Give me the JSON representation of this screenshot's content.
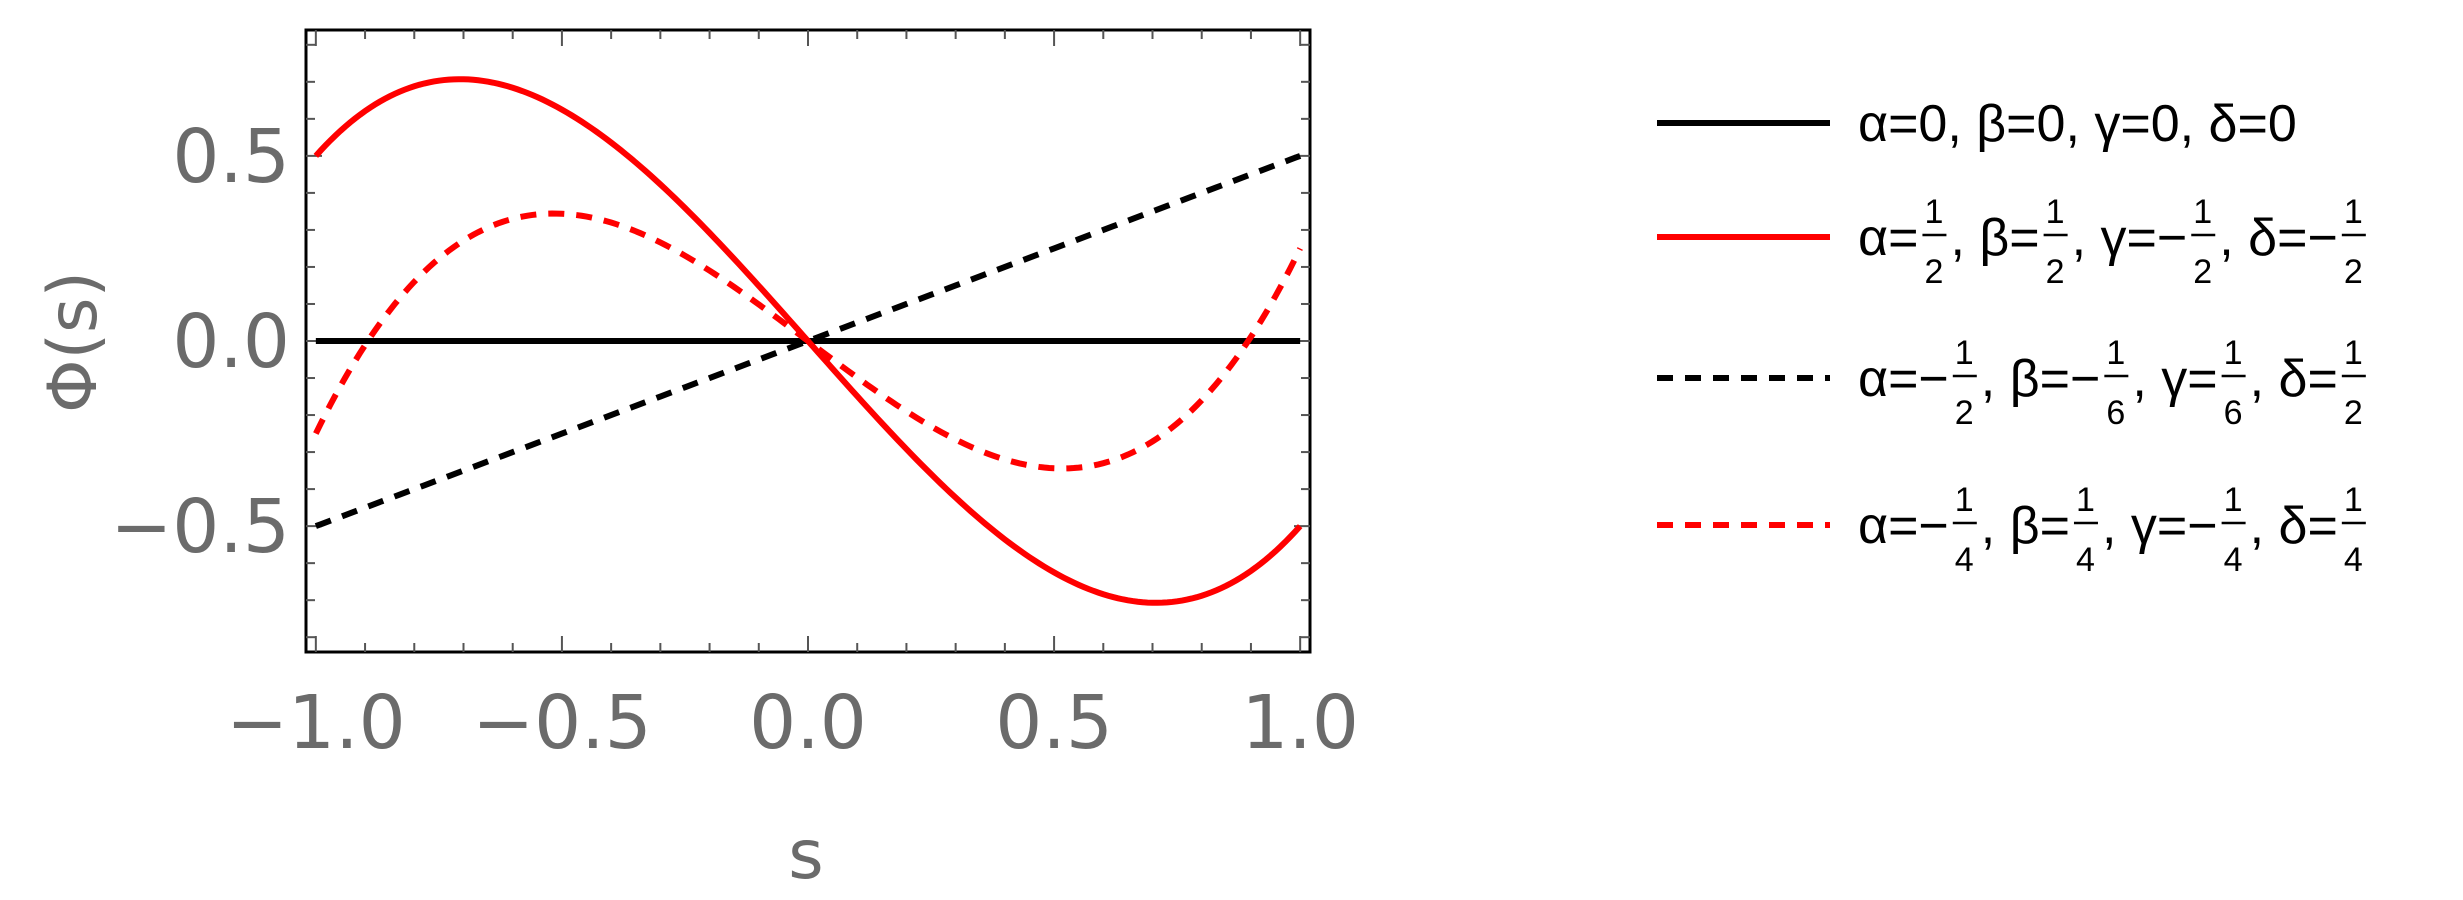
{
  "chart_data": {
    "type": "line",
    "xlabel": "s",
    "ylabel": "Φ(s)",
    "xlim": [
      -1.02,
      1.02
    ],
    "ylim": [
      -0.84,
      0.84
    ],
    "x_ticks": [
      -1.0,
      -0.5,
      0.0,
      0.5,
      1.0
    ],
    "x_tick_labels": [
      "−1.0",
      "−0.5",
      "0.0",
      "0.5",
      "1.0"
    ],
    "y_ticks": [
      -0.5,
      0.0,
      0.5
    ],
    "y_tick_labels": [
      "−0.5",
      "0.0",
      "0.5"
    ],
    "legend_position": "right",
    "series": [
      {
        "name": "α=0, β=0, γ=0, δ=0",
        "coeffs": {
          "alpha": 0,
          "beta": 0,
          "gamma": 0,
          "delta": 0
        },
        "color": "#000000",
        "dash": "solid",
        "legend_parts": [
          {
            "t": "α=0, β=0, γ=0, δ=0"
          }
        ]
      },
      {
        "name": "α=1/2, β=1/2, γ=−1/2, δ=−1/2",
        "coeffs": {
          "alpha": 0.5,
          "beta": 0.5,
          "gamma": -0.5,
          "delta": -0.5
        },
        "color": "#ff0000",
        "dash": "solid",
        "legend_parts": [
          {
            "t": "α="
          },
          {
            "n": "1",
            "d": "2"
          },
          {
            "t": ", β="
          },
          {
            "n": "1",
            "d": "2"
          },
          {
            "t": ", γ=−"
          },
          {
            "n": "1",
            "d": "2"
          },
          {
            "t": ", δ=−"
          },
          {
            "n": "1",
            "d": "2"
          }
        ]
      },
      {
        "name": "α=−1/2, β=−1/6, γ=1/6, δ=1/2",
        "coeffs": {
          "alpha": -0.5,
          "beta": -0.1667,
          "gamma": 0.1667,
          "delta": 0.5
        },
        "color": "#000000",
        "dash": "dashed",
        "legend_parts": [
          {
            "t": "α=−"
          },
          {
            "n": "1",
            "d": "2"
          },
          {
            "t": ", β=−"
          },
          {
            "n": "1",
            "d": "6"
          },
          {
            "t": ", γ="
          },
          {
            "n": "1",
            "d": "6"
          },
          {
            "t": ", δ="
          },
          {
            "n": "1",
            "d": "2"
          }
        ]
      },
      {
        "name": "α=−1/4, β=1/4, γ=−1/4, δ=1/4",
        "coeffs": {
          "alpha": -0.25,
          "beta": 0.25,
          "gamma": -0.25,
          "delta": 0.25
        },
        "color": "#ff0000",
        "dash": "dashed",
        "legend_parts": [
          {
            "t": "α=−"
          },
          {
            "n": "1",
            "d": "4"
          },
          {
            "t": ", β="
          },
          {
            "n": "1",
            "d": "4"
          },
          {
            "t": ", γ=−"
          },
          {
            "n": "1",
            "d": "4"
          },
          {
            "t": ", δ="
          },
          {
            "n": "1",
            "d": "4"
          }
        ]
      }
    ]
  }
}
